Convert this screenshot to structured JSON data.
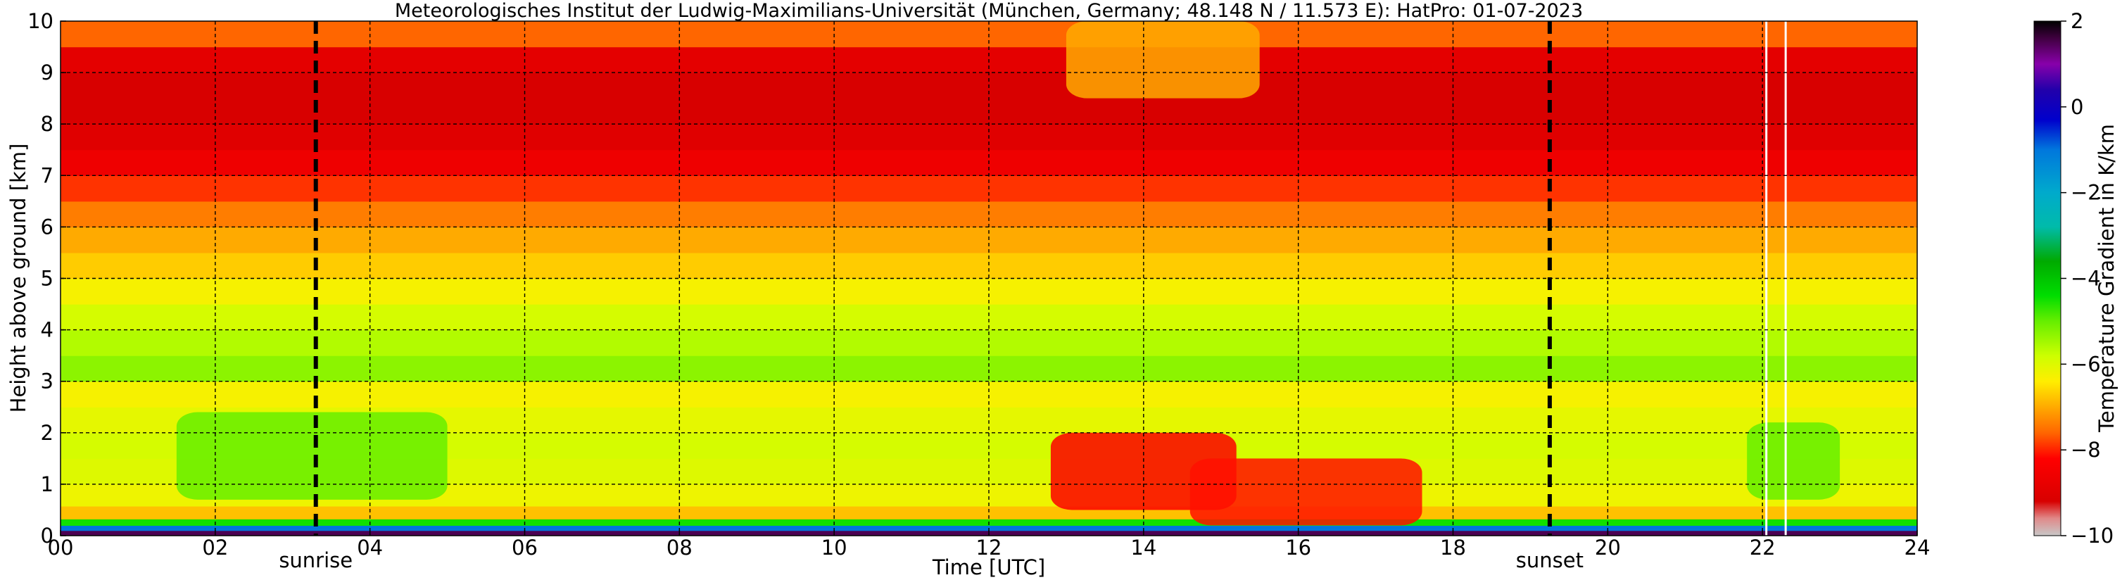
{
  "chart_data": {
    "type": "heatmap",
    "title": "Meteorologisches Institut der Ludwig-Maximilians-Universität (München, Germany; 48.148 N / 11.573 E):    HatPro: 01-07-2023",
    "xlabel": "Time [UTC]",
    "ylabel": "Height above ground [km]",
    "xlim": [
      0,
      24
    ],
    "ylim": [
      0,
      10
    ],
    "x_ticks": [
      0,
      2,
      4,
      6,
      8,
      10,
      12,
      14,
      16,
      18,
      20,
      22,
      24
    ],
    "x_tick_labels": [
      "00",
      "02",
      "04",
      "06",
      "08",
      "10",
      "12",
      "14",
      "16",
      "18",
      "20",
      "22",
      "24"
    ],
    "y_ticks": [
      0,
      1,
      2,
      3,
      4,
      5,
      6,
      7,
      8,
      9,
      10
    ],
    "y_tick_labels": [
      "0",
      "1",
      "2",
      "3",
      "4",
      "5",
      "6",
      "7",
      "8",
      "9",
      "10"
    ],
    "grid": true,
    "colorbar": {
      "label": "Temperature Gradient in K/km",
      "min": -10,
      "max": 2,
      "ticks": [
        2,
        0,
        -2,
        -4,
        -6,
        -8,
        -10
      ],
      "tick_labels": [
        "2",
        "0",
        "−2",
        "−4",
        "−6",
        "−8",
        "−10"
      ],
      "stops": [
        {
          "value": -10,
          "color": "#c8c8c8"
        },
        {
          "value": -9.6,
          "color": "#e08a8a"
        },
        {
          "value": -9.2,
          "color": "#d80000"
        },
        {
          "value": -8.2,
          "color": "#ff0000"
        },
        {
          "value": -7.6,
          "color": "#ff6600"
        },
        {
          "value": -7.0,
          "color": "#ffaa00"
        },
        {
          "value": -6.4,
          "color": "#ffee00"
        },
        {
          "value": -5.8,
          "color": "#ccff00"
        },
        {
          "value": -5.0,
          "color": "#66ee00"
        },
        {
          "value": -4.4,
          "color": "#00dd00"
        },
        {
          "value": -3.6,
          "color": "#00aa00"
        },
        {
          "value": -2.8,
          "color": "#00bbaa"
        },
        {
          "value": -2.0,
          "color": "#00aacc"
        },
        {
          "value": -1.0,
          "color": "#0077dd"
        },
        {
          "value": -0.3,
          "color": "#0000cc"
        },
        {
          "value": 0.4,
          "color": "#2200aa"
        },
        {
          "value": 1.0,
          "color": "#8800aa"
        },
        {
          "value": 1.6,
          "color": "#400040"
        },
        {
          "value": 2,
          "color": "#000000"
        }
      ]
    },
    "events": [
      {
        "label": "sunrise",
        "time": 3.3
      },
      {
        "label": "sunset",
        "time": 19.25
      }
    ],
    "gaps": [
      22.05,
      22.3
    ],
    "grid_data": {
      "time": [
        0,
        1,
        2,
        3,
        4,
        5,
        6,
        7,
        8,
        9,
        10,
        11,
        12,
        13,
        14,
        15,
        16,
        17,
        18,
        19,
        20,
        21,
        22,
        23,
        24
      ],
      "height_km": [
        0.05,
        0.15,
        0.25,
        0.4,
        0.75,
        1.25,
        1.75,
        2.25,
        2.75,
        3.25,
        3.75,
        4.25,
        4.75,
        5.25,
        5.75,
        6.25,
        6.75,
        7.25,
        7.75,
        8.25,
        8.75,
        9.25,
        9.75
      ],
      "layer_gradient": [
        1.5,
        -1,
        -4.5,
        -6.8,
        -6.2,
        -6.0,
        -5.9,
        -6.1,
        -6.3,
        -5.3,
        -5.6,
        -5.9,
        -6.3,
        -6.7,
        -7.0,
        -7.4,
        -7.9,
        -8.6,
        -9.0,
        -9.2,
        -9.2,
        -8.9,
        -7.6
      ],
      "zones": [
        {
          "t0": 1.5,
          "t1": 5.0,
          "h0": 0.7,
          "h1": 2.4,
          "value": -5.0
        },
        {
          "t0": 12.8,
          "t1": 15.2,
          "h0": 0.5,
          "h1": 2.0,
          "value": -8.3
        },
        {
          "t0": 14.6,
          "t1": 17.6,
          "h0": 0.2,
          "h1": 1.5,
          "value": -8.1
        },
        {
          "t0": 21.8,
          "t1": 23.0,
          "h0": 0.7,
          "h1": 2.2,
          "value": -5.0
        },
        {
          "t0": 13.0,
          "t1": 15.5,
          "h0": 8.5,
          "h1": 10.0,
          "value": -7.0
        }
      ]
    }
  }
}
